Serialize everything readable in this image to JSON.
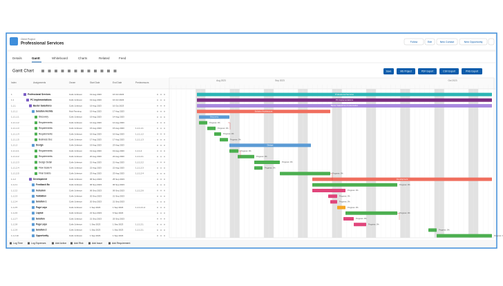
{
  "header": {
    "object_type": "Client Project",
    "title": "Professional Services",
    "buttons": [
      "Follow",
      "Edit",
      "New Contact",
      "New Opportunity"
    ]
  },
  "tabs": [
    "Details",
    "Gantt",
    "Whiteboard",
    "Charts",
    "Related",
    "Feed"
  ],
  "gantt": {
    "title": "Gantt Chart",
    "export_buttons": [
      "Save",
      "MS Project",
      "PDF Export",
      "CSV Export",
      "PNG Export"
    ],
    "columns": [
      "Index",
      "Assignments",
      "Owner",
      "Start Date",
      "End Date",
      "Predecessors"
    ],
    "months": [
      "Aug 2023",
      "Sep 2023",
      "Oct 2023"
    ],
    "rows": [
      [
        "1",
        "Professional Services",
        "Colin Johnson",
        "19 Aug 2023",
        "16 Oct 2023",
        ""
      ],
      [
        "1.1",
        "PC Implementations",
        "Colin Johnson",
        "19 Aug 2023",
        "16 Oct 2023",
        ""
      ],
      [
        "1.1.1",
        "Baxter Salesforce",
        "Colin Johnson",
        "19 Aug 2023",
        "16 Oct 2023",
        ""
      ],
      [
        "1.1.1.1",
        "Solution Archite",
        "Nick Fanning",
        "19 Aug 2023",
        "17 Aug 2023",
        ""
      ],
      [
        "1.1.1.1.1",
        "Discovery",
        "Colin Johnson",
        "19 Aug 2023",
        "14 Aug 2023",
        ""
      ],
      [
        "1.1.1.1.2",
        "Requirements",
        "Colin Johnson",
        "14 Aug 2023",
        "14 Aug 2023",
        ""
      ],
      [
        "1.1.1.1.3",
        "Requirements",
        "Colin Johnson",
        "15 Aug 2023",
        "15 Aug 2023",
        "1.1.1.1.1"
      ],
      [
        "1.1.1.1.4",
        "Requirements",
        "Colin Johnson",
        "16 Aug 2023",
        "16 Aug 2023",
        "1.1.1.1.2"
      ],
      [
        "1.1.1.1.5",
        "Business Doc",
        "Colin Johnson",
        "17 Aug 2023",
        "17 Aug 2023",
        "1.1.1.1.3"
      ],
      [
        "1.1.1.2",
        "Design",
        "Colin Johnson",
        "19 Aug 2023",
        "23 Aug 2023",
        ""
      ],
      [
        "1.1.1.2.1",
        "Requirements",
        "Colin Johnson",
        "19 Aug 2023",
        "19 Aug 2023",
        "1.1.1.2"
      ],
      [
        "1.1.1.2.2",
        "Requirements",
        "Colin Johnson",
        "20 Aug 2023",
        "22 Aug 2023",
        "1.1.1.2.1"
      ],
      [
        "1.1.1.2.3",
        "Design Detail",
        "Colin Johnson",
        "21 Aug 2023",
        "21 Aug 2023",
        "1.1.1.2.2"
      ],
      [
        "1.1.1.2.4",
        "Flow Scale N",
        "Colin Johnson",
        "22 Aug 2023",
        "22 Aug 2023",
        "1.1.1.2.3"
      ],
      [
        "1.1.1.2.5",
        "Final Solutio",
        "Colin Johnson",
        "23 Aug 2023",
        "23 Aug 2023",
        "1.1.1.2.4"
      ],
      [
        "1.1.2",
        "Development",
        "Colin Johnson",
        "06 Sep 2023",
        "25 Sep 2023",
        ""
      ],
      [
        "1.1.2.1",
        "Feedback Bo",
        "Colin Johnson",
        "06 Sep 2023",
        "06 Sep 2023",
        ""
      ],
      [
        "1.1.2.2",
        "Inclusion",
        "Colin Johnson",
        "06 Sep 2023",
        "09 Sep 2023",
        "1.1.1.2.6"
      ],
      [
        "1.1.2.3",
        "Validation",
        "Colin Johnson",
        "20 Sep 2023",
        "21 Sep 2023",
        ""
      ],
      [
        "1.1.2.4",
        "Solution 1",
        "Colin Johnson",
        "20 Sep 2023",
        "21 Sep 2023",
        ""
      ],
      [
        "1.1.2.5",
        "Page Layo",
        "Colin Johnson",
        "1 Sep 2023",
        "1 Sep 2023",
        "1.1.1.2.1.2"
      ],
      [
        "1.1.2.6",
        "Layout",
        "Colin Johnson",
        "21 Sep 2023",
        "6 Sep 2023",
        ""
      ],
      [
        "1.1.2.7",
        "Solution",
        "Colin Johnson",
        "21 Sep 2023",
        "25 Sep 2023",
        ""
      ],
      [
        "1.1.2.8",
        "Page Layo",
        "Colin Johnson",
        "1 Sep 2023",
        "1 Sep 2023",
        "1.1.1.2.1"
      ],
      [
        "1.1.2.9",
        "Solution 2",
        "Colin Johnson",
        "1 Sep 2023",
        "1 Sep 2023",
        "1.1.1.2.1"
      ],
      [
        "1.1.2.10",
        "Opportunity",
        "Colin Johnson",
        "1 Sep 2023",
        "1 Sep 2023",
        ""
      ]
    ],
    "bar_labels": [
      "Professional Services",
      "PC Implementations",
      "Baxter Salesforce & Automation",
      "Solution Architecture",
      "Discovery",
      "Design",
      "Development",
      "Progress: 0%"
    ]
  },
  "footer": [
    "Log Time",
    "Log Expenses",
    "Add Action",
    "Add Risk",
    "Add Issue",
    "Add Requirement"
  ]
}
